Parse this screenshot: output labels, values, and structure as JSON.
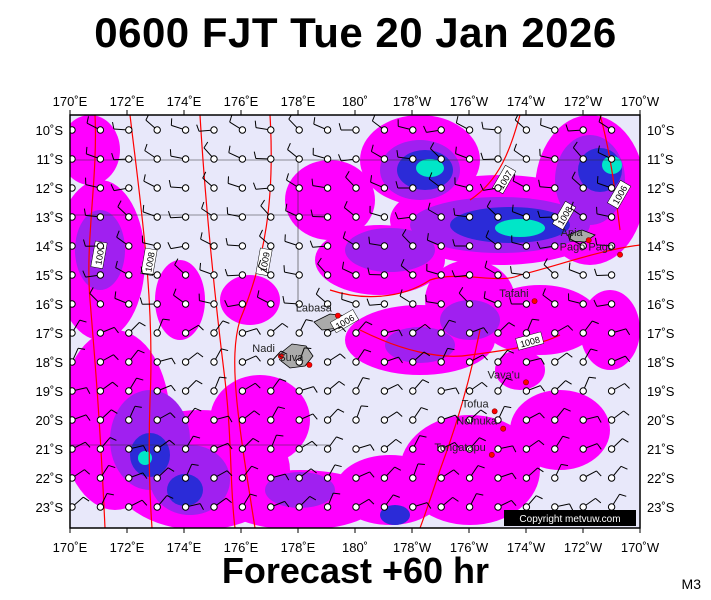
{
  "header": {
    "title": "0600 FJT Tue 20 Jan 2026"
  },
  "footer": {
    "forecast": "Forecast +60 hr",
    "code": "M3"
  },
  "map": {
    "lon_labels": [
      "170˚E",
      "172˚E",
      "174˚E",
      "176˚E",
      "178˚E",
      "180˚",
      "178˚W",
      "176˚W",
      "174˚W",
      "172˚W",
      "170˚W"
    ],
    "lat_labels": [
      "10˚S",
      "11˚S",
      "12˚S",
      "13˚S",
      "14˚S",
      "15˚S",
      "16˚S",
      "17˚S",
      "18˚S",
      "19˚S",
      "20˚S",
      "21˚S",
      "22˚S",
      "23˚S"
    ],
    "places": [
      {
        "name": "Apia",
        "lon": -171.8,
        "lat": -13.8
      },
      {
        "name": "Pago Pago",
        "lon": -170.7,
        "lat": -14.3
      },
      {
        "name": "Tafahi",
        "lon": -173.7,
        "lat": -15.9
      },
      {
        "name": "Labasa",
        "lon": 179.4,
        "lat": -16.4
      },
      {
        "name": "Nadi",
        "lon": 177.4,
        "lat": -17.8
      },
      {
        "name": "Suva",
        "lon": 178.4,
        "lat": -18.1
      },
      {
        "name": "Vava'u",
        "lon": -174.0,
        "lat": -18.7
      },
      {
        "name": "Tofua",
        "lon": -175.1,
        "lat": -19.7
      },
      {
        "name": "Nomuka",
        "lon": -174.8,
        "lat": -20.3
      },
      {
        "name": "Tongatapu",
        "lon": -175.2,
        "lat": -21.2
      }
    ],
    "isobar_labels": [
      "1007",
      "1008",
      "1009",
      "1006",
      "1007",
      "1006",
      "1008",
      "1008"
    ],
    "copyright": "Copyright metvuw.com",
    "colors": {
      "background": "#e8e8fa",
      "rain_light": "#ff00ff",
      "rain_mid": "#a020f0",
      "rain_heavy": "#2b2bd8",
      "rain_extreme": "#00e6c8",
      "isobar": "#ff0000",
      "land": "#aaaaaa"
    }
  }
}
